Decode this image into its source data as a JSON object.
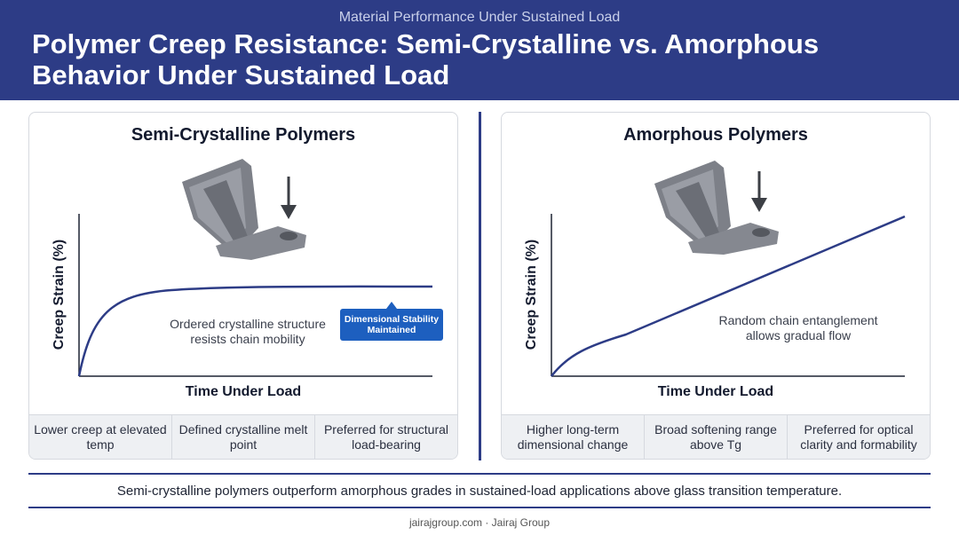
{
  "header": {
    "kicker": "Material Performance Under Sustained Load",
    "title": "Polymer Creep Resistance: Semi-Crystalline vs. Amorphous Behavior Under Sustained Load"
  },
  "panels": [
    {
      "title": "Semi-Crystalline Polymers",
      "y_label": "Creep Strain (%)",
      "x_label": "Time Under Load",
      "annotation": "Ordered crystalline structure resists chain mobility",
      "callout": "Dimensional Stability Maintained",
      "features": [
        "Lower creep at elevated temp",
        "Defined crystalline melt point",
        "Preferred for structural load-bearing"
      ]
    },
    {
      "title": "Amorphous Polymers",
      "y_label": "Creep Strain (%)",
      "x_label": "Time Under Load",
      "annotation": "Random chain entanglement allows gradual flow",
      "features": [
        "Higher long-term dimensional change",
        "Broad softening range above Tg",
        "Preferred for optical clarity and formability"
      ]
    }
  ],
  "footer": {
    "summary": "Semi-crystalline polymers outperform amorphous grades in sustained-load applications above glass transition temperature.",
    "credit": "jairajgroup.com · Jairaj Group"
  }
}
